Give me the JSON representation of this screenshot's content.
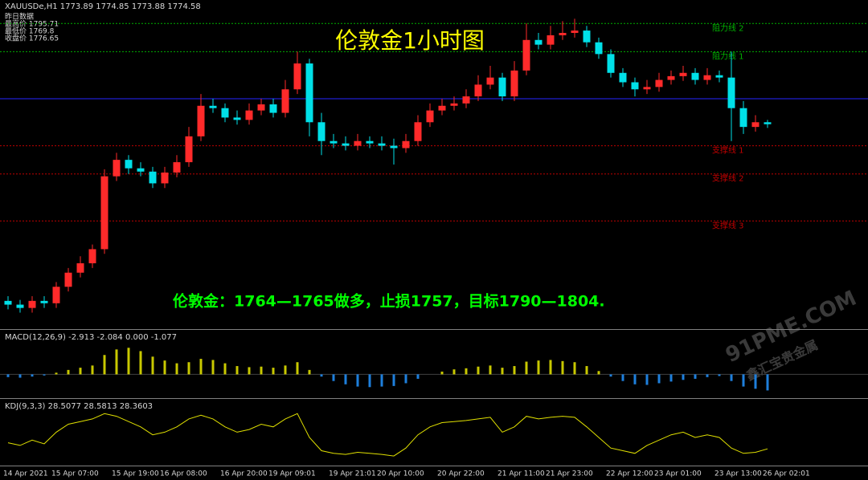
{
  "chart_data": {
    "type": "candlestick",
    "title": "伦敦金1小时图",
    "header": "XAUUSDe,H1  1773.89 1774.85 1773.88 1774.58",
    "info": [
      "昨日数据",
      "最高价 1795.71",
      "最低价 1769.8",
      "收盘价 1776.65"
    ],
    "annotation": "伦敦金：1764—1765做多，止损1757，目标1790—1804.",
    "categories": [
      "14 Apr 2021",
      null,
      null,
      null,
      "15 Apr 07:00",
      null,
      null,
      null,
      null,
      "15 Apr 19:00",
      null,
      null,
      null,
      "16 Apr 08:00",
      null,
      null,
      null,
      null,
      "16 Apr 20:00",
      null,
      null,
      null,
      "19 Apr 09:01",
      null,
      null,
      null,
      null,
      "19 Apr 21:01",
      null,
      null,
      null,
      "20 Apr 10:00",
      null,
      null,
      null,
      null,
      "20 Apr 22:00",
      null,
      null,
      null,
      null,
      "21 Apr 11:00",
      null,
      null,
      null,
      "21 Apr 23:00",
      null,
      null,
      null,
      null,
      "22 Apr 12:00",
      null,
      null,
      null,
      "23 Apr 01:00",
      null,
      null,
      null,
      null,
      "23 Apr 13:00",
      null,
      null,
      null,
      "26 Apr 02:01"
    ],
    "open": [
      1737.0,
      1736.2,
      1735.5,
      1737.0,
      1736.5,
      1740.0,
      1743.0,
      1745.0,
      1748.0,
      1763.5,
      1767.0,
      1765.2,
      1764.5,
      1762.0,
      1764.3,
      1766.5,
      1772.0,
      1778.5,
      1778.0,
      1776.0,
      1775.5,
      1777.5,
      1778.8,
      1777.0,
      1782.0,
      1787.5,
      1775.0,
      1771.0,
      1770.5,
      1770.0,
      1771.0,
      1770.5,
      1770.0,
      1769.5,
      1771.0,
      1775.0,
      1777.5,
      1778.5,
      1779.0,
      1780.5,
      1783.0,
      1784.5,
      1780.5,
      1786.0,
      1792.5,
      1791.5,
      1793.5,
      1794.0,
      1794.5,
      1792.0,
      1789.5,
      1785.5,
      1783.5,
      1782.0,
      1782.5,
      1784.0,
      1784.8,
      1785.5,
      1784.0,
      1785.0,
      1784.5,
      1778.0,
      1774.0,
      1775.0
    ],
    "high": [
      1738.0,
      1737.2,
      1738.0,
      1738.0,
      1741.0,
      1744.0,
      1746.5,
      1749.0,
      1765.0,
      1768.5,
      1768.0,
      1766.5,
      1765.5,
      1765.5,
      1768.0,
      1774.0,
      1781.0,
      1780.0,
      1779.0,
      1777.5,
      1779.0,
      1780.0,
      1780.0,
      1784.0,
      1790.0,
      1788.5,
      1777.0,
      1772.5,
      1772.0,
      1772.5,
      1772.0,
      1772.0,
      1771.5,
      1772.5,
      1776.5,
      1779.0,
      1780.0,
      1780.5,
      1782.0,
      1785.0,
      1787.0,
      1785.5,
      1788.0,
      1796.0,
      1794.0,
      1795.5,
      1796.5,
      1797.0,
      1795.5,
      1793.0,
      1790.5,
      1786.5,
      1784.5,
      1784.0,
      1785.5,
      1786.0,
      1787.0,
      1786.5,
      1786.5,
      1786.0,
      1790.0,
      1779.5,
      1776.5,
      1775.5
    ],
    "low": [
      1735.2,
      1734.5,
      1734.5,
      1735.5,
      1735.5,
      1739.0,
      1742.0,
      1744.0,
      1747.0,
      1762.5,
      1764.0,
      1763.5,
      1761.0,
      1761.0,
      1763.3,
      1765.5,
      1771.0,
      1777.0,
      1775.0,
      1774.5,
      1774.5,
      1776.5,
      1776.0,
      1776.0,
      1781.0,
      1772.0,
      1768.0,
      1769.5,
      1769.0,
      1769.0,
      1769.5,
      1769.0,
      1766.0,
      1768.5,
      1770.0,
      1774.0,
      1776.5,
      1777.5,
      1778.0,
      1779.5,
      1782.0,
      1779.5,
      1779.5,
      1785.0,
      1790.5,
      1790.5,
      1792.5,
      1793.0,
      1791.0,
      1788.5,
      1784.5,
      1782.5,
      1780.5,
      1781.0,
      1781.5,
      1783.0,
      1783.8,
      1783.0,
      1783.0,
      1783.5,
      1771.0,
      1772.5,
      1773.0,
      1773.8
    ],
    "close": [
      1736.2,
      1735.5,
      1737.0,
      1736.5,
      1740.0,
      1743.0,
      1745.0,
      1748.0,
      1763.5,
      1767.0,
      1765.2,
      1764.5,
      1762.0,
      1764.3,
      1766.5,
      1772.0,
      1778.5,
      1778.0,
      1776.0,
      1775.5,
      1777.5,
      1778.8,
      1777.0,
      1782.0,
      1787.5,
      1775.0,
      1771.0,
      1770.5,
      1770.0,
      1771.0,
      1770.5,
      1770.0,
      1769.5,
      1771.0,
      1775.0,
      1777.5,
      1778.5,
      1779.0,
      1780.5,
      1783.0,
      1784.5,
      1780.5,
      1786.0,
      1792.5,
      1791.5,
      1793.5,
      1794.0,
      1794.5,
      1792.0,
      1789.5,
      1785.5,
      1783.5,
      1782.0,
      1782.5,
      1784.0,
      1784.8,
      1785.5,
      1784.0,
      1785.0,
      1784.5,
      1778.0,
      1774.0,
      1775.0,
      1774.58
    ],
    "up_color": "#ff2a2a",
    "down_color": "#00e0e8",
    "ylim": [
      1731,
      1801
    ],
    "levels": [
      {
        "label": "阻力线 2",
        "value": 1796,
        "color": "#00b000",
        "dashed": true
      },
      {
        "label": "阻力线 1",
        "value": 1790,
        "color": "#00b000",
        "dashed": true
      },
      {
        "value": 1780,
        "color": "#2626ff",
        "dashed": false
      },
      {
        "label": "支撑线 1",
        "value": 1770,
        "color": "#c00000",
        "dashed": true
      },
      {
        "label": "支撑线 2",
        "value": 1764,
        "color": "#c00000",
        "dashed": true
      },
      {
        "label": "支撑线 3",
        "value": 1754,
        "color": "#c00000",
        "dashed": true
      }
    ],
    "watermark": [
      "91PME.COM",
      "鑫汇宝贵金属"
    ],
    "macd": {
      "label": "MACD(12,26,9) -2.913 -2.084 0.000 -1.077",
      "ylim": [
        -4,
        6
      ],
      "pos_color": "#c8c800",
      "neg_color": "#1e7fdc",
      "values": [
        -0.5,
        -0.6,
        -0.4,
        -0.2,
        0.3,
        0.8,
        1.2,
        1.6,
        3.5,
        4.5,
        4.8,
        4.2,
        3.2,
        2.5,
        2.0,
        2.2,
        2.8,
        2.6,
        2.0,
        1.5,
        1.3,
        1.4,
        1.2,
        1.6,
        2.2,
        0.8,
        -0.4,
        -1.2,
        -1.8,
        -2.2,
        -2.3,
        -2.2,
        -2.1,
        -1.6,
        -0.8,
        0.0,
        0.5,
        0.9,
        1.1,
        1.4,
        1.6,
        1.2,
        1.5,
        2.3,
        2.5,
        2.6,
        2.4,
        2.2,
        1.5,
        0.6,
        -0.4,
        -1.2,
        -1.8,
        -1.9,
        -1.6,
        -1.3,
        -1.0,
        -0.8,
        -0.5,
        -0.3,
        -1.2,
        -2.2,
        -2.6,
        -2.9
      ]
    },
    "kdj": {
      "label": "KDJ(9,3,3) 28.5077 28.5813 28.3603",
      "ylim": [
        0,
        100
      ],
      "color": "#e0e000",
      "values": [
        40,
        35,
        45,
        38,
        60,
        75,
        80,
        85,
        95,
        90,
        80,
        70,
        55,
        60,
        70,
        85,
        92,
        85,
        70,
        60,
        65,
        75,
        70,
        85,
        95,
        50,
        25,
        20,
        18,
        22,
        20,
        18,
        15,
        30,
        55,
        70,
        78,
        80,
        82,
        85,
        88,
        60,
        70,
        90,
        85,
        88,
        90,
        88,
        70,
        50,
        30,
        25,
        20,
        35,
        45,
        55,
        60,
        50,
        55,
        50,
        30,
        20,
        22,
        28.5
      ]
    }
  }
}
